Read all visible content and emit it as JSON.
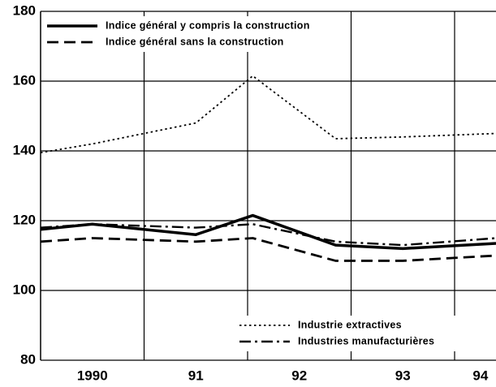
{
  "chart_data": {
    "type": "line",
    "x": [
      1990,
      1990.5,
      1991.5,
      1992.05,
      1992.85,
      1993.5,
      1994.4
    ],
    "xlim": [
      1990,
      1994.4
    ],
    "xticks": [
      {
        "value": 1990.5,
        "label": "1990"
      },
      {
        "value": 1991.5,
        "label": "91"
      },
      {
        "value": 1992.5,
        "label": "92"
      },
      {
        "value": 1993.5,
        "label": "93"
      },
      {
        "value": 1994.25,
        "label": "94"
      }
    ],
    "xgrid": [
      1991,
      1992,
      1993,
      1994
    ],
    "ylim": [
      80,
      180
    ],
    "yticks": [
      80,
      100,
      120,
      140,
      160,
      180
    ],
    "grid": true,
    "series": [
      {
        "name": "Indice général y compris la construction",
        "color": "#000",
        "style": "solid",
        "legend": "upper left",
        "values": [
          117.5,
          119,
          116,
          121.5,
          113,
          112,
          113.5
        ]
      },
      {
        "name": "Indice général sans la construction",
        "color": "#000",
        "style": "dashed",
        "legend": "upper left",
        "values": [
          114,
          115,
          114,
          115,
          108.5,
          108.5,
          110
        ]
      },
      {
        "name": "Industrie extractives",
        "color": "#000",
        "style": "dotted",
        "legend": "lower right",
        "values": [
          139.5,
          142,
          148,
          161.5,
          143.5,
          144,
          145
        ]
      },
      {
        "name": "Industries manufacturières",
        "color": "#000",
        "style": "dashdot",
        "legend": "lower right",
        "values": [
          118,
          119,
          118,
          119,
          114,
          113,
          115
        ]
      }
    ]
  }
}
